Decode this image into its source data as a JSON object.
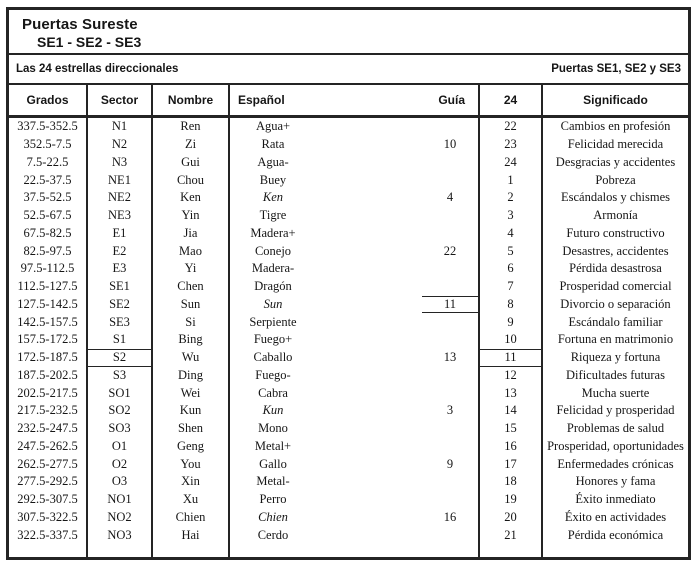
{
  "title": {
    "line1": "Puertas Sureste",
    "line2": "SE1 - SE2 - SE3"
  },
  "subheader": {
    "left": "Las 24 estrellas direccionales",
    "right": "Puertas SE1, SE2 y SE3"
  },
  "table": {
    "headers": {
      "grados": "Grados",
      "sector": "Sector",
      "nombre": "Nombre",
      "espanol": "Español",
      "guia": "Guía",
      "veinticuatro": "24",
      "significado": "Significado"
    },
    "rows": [
      {
        "grados": "337.5-352.5",
        "sector": "N1",
        "nombre": "Ren",
        "espanol": "Agua+",
        "guia": "",
        "n24": "22",
        "significado": "Cambios en profesión"
      },
      {
        "grados": "352.5-7.5",
        "sector": "N2",
        "nombre": "Zi",
        "espanol": "Rata",
        "guia": "10",
        "n24": "23",
        "significado": "Felicidad merecida"
      },
      {
        "grados": "7.5-22.5",
        "sector": "N3",
        "nombre": "Gui",
        "espanol": "Agua-",
        "guia": "",
        "n24": "24",
        "significado": "Desgracias y accidentes"
      },
      {
        "grados": "22.5-37.5",
        "sector": "NE1",
        "nombre": "Chou",
        "espanol": "Buey",
        "guia": "",
        "n24": "1",
        "significado": "Pobreza"
      },
      {
        "grados": "37.5-52.5",
        "sector": "NE2",
        "nombre": "Ken",
        "espanol": "Ken",
        "espanol_italic": true,
        "guia": "4",
        "n24": "2",
        "significado": "Escándalos y chismes"
      },
      {
        "grados": "52.5-67.5",
        "sector": "NE3",
        "nombre": "Yin",
        "espanol": "Tigre",
        "guia": "",
        "n24": "3",
        "significado": "Armonía"
      },
      {
        "grados": "67.5-82.5",
        "sector": "E1",
        "nombre": "Jia",
        "espanol": "Madera+",
        "guia": "",
        "n24": "4",
        "significado": "Futuro constructivo"
      },
      {
        "grados": "82.5-97.5",
        "sector": "E2",
        "nombre": "Mao",
        "espanol": "Conejo",
        "guia": "22",
        "n24": "5",
        "significado": "Desastres, accidentes"
      },
      {
        "grados": "97.5-112.5",
        "sector": "E3",
        "nombre": "Yi",
        "espanol": "Madera-",
        "guia": "",
        "n24": "6",
        "significado": "Pérdida desastrosa"
      },
      {
        "grados": "112.5-127.5",
        "sector": "SE1",
        "nombre": "Chen",
        "espanol": "Dragón",
        "guia": "",
        "n24": "7",
        "significado": "Prosperidad comercial"
      },
      {
        "grados": "127.5-142.5",
        "sector": "SE2",
        "nombre": "Sun",
        "espanol": "Sun",
        "espanol_italic": true,
        "guia": "11",
        "guia_boxed": true,
        "n24": "8",
        "significado": "Divorcio o separación"
      },
      {
        "grados": "142.5-157.5",
        "sector": "SE3",
        "nombre": "Si",
        "espanol": "Serpiente",
        "guia": "",
        "n24": "9",
        "significado": "Escándalo familiar"
      },
      {
        "grados": "157.5-172.5",
        "sector": "S1",
        "nombre": "Bing",
        "espanol": "Fuego+",
        "guia": "",
        "n24": "10",
        "significado": "Fortuna en matrimonio"
      },
      {
        "grados": "172.5-187.5",
        "sector": "S2",
        "sector_boxed": true,
        "nombre": "Wu",
        "espanol": "Caballo",
        "guia": "13",
        "n24": "11",
        "n24_boxed": true,
        "significado": "Riqueza y fortuna"
      },
      {
        "grados": "187.5-202.5",
        "sector": "S3",
        "nombre": "Ding",
        "espanol": "Fuego-",
        "guia": "",
        "n24": "12",
        "significado": "Dificultades futuras"
      },
      {
        "grados": "202.5-217.5",
        "sector": "SO1",
        "nombre": "Wei",
        "espanol": "Cabra",
        "guia": "",
        "n24": "13",
        "significado": "Mucha suerte"
      },
      {
        "grados": "217.5-232.5",
        "sector": "SO2",
        "nombre": "Kun",
        "espanol": "Kun",
        "espanol_italic": true,
        "guia": "3",
        "n24": "14",
        "significado": "Felicidad y prosperidad"
      },
      {
        "grados": "232.5-247.5",
        "sector": "SO3",
        "nombre": "Shen",
        "espanol": "Mono",
        "guia": "",
        "n24": "15",
        "significado": "Problemas de salud"
      },
      {
        "grados": "247.5-262.5",
        "sector": "O1",
        "nombre": "Geng",
        "espanol": "Metal+",
        "guia": "",
        "n24": "16",
        "significado": "Prosperidad, oportunidades"
      },
      {
        "grados": "262.5-277.5",
        "sector": "O2",
        "nombre": "You",
        "espanol": "Gallo",
        "guia": "9",
        "n24": "17",
        "significado": "Enfermedades crónicas"
      },
      {
        "grados": "277.5-292.5",
        "sector": "O3",
        "nombre": "Xin",
        "espanol": "Metal-",
        "guia": "",
        "n24": "18",
        "significado": "Honores y fama"
      },
      {
        "grados": "292.5-307.5",
        "sector": "NO1",
        "nombre": "Xu",
        "espanol": "Perro",
        "guia": "",
        "n24": "19",
        "significado": "Éxito inmediato"
      },
      {
        "grados": "307.5-322.5",
        "sector": "NO2",
        "nombre": "Chien",
        "espanol": "Chien",
        "espanol_italic": true,
        "guia": "16",
        "n24": "20",
        "significado": "Éxito en actividades"
      },
      {
        "grados": "322.5-337.5",
        "sector": "NO3",
        "nombre": "Hai",
        "espanol": "Cerdo",
        "guia": "",
        "n24": "21",
        "significado": "Pérdida económica"
      }
    ]
  },
  "colors": {
    "ink": "#161616",
    "line": "#242424",
    "paper": "#ffffff"
  }
}
